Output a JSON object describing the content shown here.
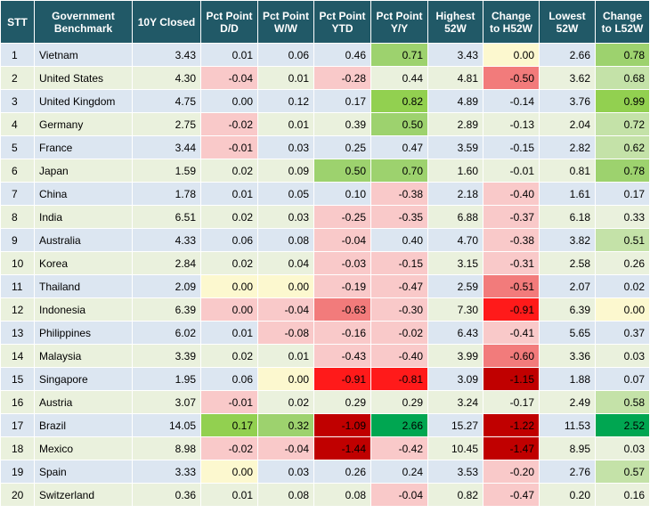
{
  "headers": [
    "STT",
    "Government Benchmark",
    "10Y Closed",
    "Pct Point D/D",
    "Pct Point W/W",
    "Pct Point YTD",
    "Pct Point Y/Y",
    "Highest 52W",
    "Change to H52W",
    "Lowest 52W",
    "Change to L52W"
  ],
  "rows": [
    {
      "stt": "1",
      "name": "Vietnam",
      "closed": "3.43",
      "dd": "0.01",
      "ww": "0.06",
      "ytd": "0.46",
      "yy": "0.71",
      "h52": "3.43",
      "ch": "0.00",
      "l52": "2.66",
      "cl": "0.78",
      "c": [
        "",
        "",
        "",
        "",
        "gm",
        "",
        "y",
        "",
        "gm"
      ]
    },
    {
      "stt": "2",
      "name": "United States",
      "closed": "4.30",
      "dd": "-0.04",
      "ww": "0.01",
      "ytd": "-0.28",
      "yy": "0.44",
      "h52": "4.81",
      "ch": "-0.50",
      "l52": "3.62",
      "cl": "0.68",
      "c": [
        "",
        "rl",
        "",
        "rl",
        "",
        "",
        "rm",
        "",
        "gl"
      ]
    },
    {
      "stt": "3",
      "name": "United Kingdom",
      "closed": "4.75",
      "dd": "0.00",
      "ww": "0.12",
      "ytd": "0.17",
      "yy": "0.82",
      "h52": "4.89",
      "ch": "-0.14",
      "l52": "3.76",
      "cl": "0.99",
      "c": [
        "",
        "",
        "",
        "",
        "gs",
        "",
        "",
        "",
        "gs"
      ]
    },
    {
      "stt": "4",
      "name": "Germany",
      "closed": "2.75",
      "dd": "-0.02",
      "ww": "0.01",
      "ytd": "0.39",
      "yy": "0.50",
      "h52": "2.89",
      "ch": "-0.13",
      "l52": "2.04",
      "cl": "0.72",
      "c": [
        "",
        "rl",
        "",
        "",
        "gm",
        "",
        "",
        "",
        "gl"
      ]
    },
    {
      "stt": "5",
      "name": "France",
      "closed": "3.44",
      "dd": "-0.01",
      "ww": "0.03",
      "ytd": "0.25",
      "yy": "0.47",
      "h52": "3.59",
      "ch": "-0.15",
      "l52": "2.82",
      "cl": "0.62",
      "c": [
        "",
        "rl",
        "",
        "",
        "",
        "",
        "",
        "",
        "gl"
      ]
    },
    {
      "stt": "6",
      "name": "Japan",
      "closed": "1.59",
      "dd": "0.02",
      "ww": "0.09",
      "ytd": "0.50",
      "yy": "0.70",
      "h52": "1.60",
      "ch": "-0.01",
      "l52": "0.81",
      "cl": "0.78",
      "c": [
        "",
        "",
        "",
        "gm",
        "gm",
        "",
        "",
        "",
        "gm"
      ]
    },
    {
      "stt": "7",
      "name": "China",
      "closed": "1.78",
      "dd": "0.01",
      "ww": "0.05",
      "ytd": "0.10",
      "yy": "-0.38",
      "h52": "2.18",
      "ch": "-0.40",
      "l52": "1.61",
      "cl": "0.17",
      "c": [
        "",
        "",
        "",
        "",
        "rl",
        "",
        "rl",
        "",
        ""
      ]
    },
    {
      "stt": "8",
      "name": "India",
      "closed": "6.51",
      "dd": "0.02",
      "ww": "0.03",
      "ytd": "-0.25",
      "yy": "-0.35",
      "h52": "6.88",
      "ch": "-0.37",
      "l52": "6.18",
      "cl": "0.33",
      "c": [
        "",
        "",
        "",
        "rl",
        "rl",
        "",
        "rl",
        "",
        ""
      ]
    },
    {
      "stt": "9",
      "name": "Australia",
      "closed": "4.33",
      "dd": "0.06",
      "ww": "0.08",
      "ytd": "-0.04",
      "yy": "0.40",
      "h52": "4.70",
      "ch": "-0.38",
      "l52": "3.82",
      "cl": "0.51",
      "c": [
        "",
        "",
        "",
        "rl",
        "",
        "",
        "rl",
        "",
        "gl"
      ]
    },
    {
      "stt": "10",
      "name": "Korea",
      "closed": "2.84",
      "dd": "0.02",
      "ww": "0.04",
      "ytd": "-0.03",
      "yy": "-0.15",
      "h52": "3.15",
      "ch": "-0.31",
      "l52": "2.58",
      "cl": "0.26",
      "c": [
        "",
        "",
        "",
        "rl",
        "rl",
        "",
        "rl",
        "",
        ""
      ]
    },
    {
      "stt": "11",
      "name": "Thailand",
      "closed": "2.09",
      "dd": "0.00",
      "ww": "0.00",
      "ytd": "-0.19",
      "yy": "-0.47",
      "h52": "2.59",
      "ch": "-0.51",
      "l52": "2.07",
      "cl": "0.02",
      "c": [
        "",
        "y",
        "y",
        "rl",
        "rl",
        "",
        "rm",
        "",
        ""
      ]
    },
    {
      "stt": "12",
      "name": "Indonesia",
      "closed": "6.39",
      "dd": "0.00",
      "ww": "-0.04",
      "ytd": "-0.63",
      "yy": "-0.30",
      "h52": "7.30",
      "ch": "-0.91",
      "l52": "6.39",
      "cl": "0.00",
      "c": [
        "",
        "rl",
        "rl",
        "rm",
        "rl",
        "",
        "rs",
        "",
        "y"
      ]
    },
    {
      "stt": "13",
      "name": "Philippines",
      "closed": "6.02",
      "dd": "0.01",
      "ww": "-0.08",
      "ytd": "-0.16",
      "yy": "-0.02",
      "h52": "6.43",
      "ch": "-0.41",
      "l52": "5.65",
      "cl": "0.37",
      "c": [
        "",
        "",
        "rl",
        "rl",
        "rl",
        "",
        "rl",
        "",
        ""
      ]
    },
    {
      "stt": "14",
      "name": "Malaysia",
      "closed": "3.39",
      "dd": "0.02",
      "ww": "0.01",
      "ytd": "-0.43",
      "yy": "-0.40",
      "h52": "3.99",
      "ch": "-0.60",
      "l52": "3.36",
      "cl": "0.03",
      "c": [
        "",
        "",
        "",
        "rl",
        "rl",
        "",
        "rm",
        "",
        ""
      ]
    },
    {
      "stt": "15",
      "name": "Singapore",
      "closed": "1.95",
      "dd": "0.06",
      "ww": "0.00",
      "ytd": "-0.91",
      "yy": "-0.81",
      "h52": "3.09",
      "ch": "-1.15",
      "l52": "1.88",
      "cl": "0.07",
      "c": [
        "",
        "",
        "y",
        "rs",
        "rs",
        "",
        "rx",
        "",
        ""
      ]
    },
    {
      "stt": "16",
      "name": "Austria",
      "closed": "3.07",
      "dd": "-0.01",
      "ww": "0.02",
      "ytd": "0.29",
      "yy": "0.29",
      "h52": "3.24",
      "ch": "-0.17",
      "l52": "2.49",
      "cl": "0.58",
      "c": [
        "",
        "rl",
        "",
        "",
        "",
        "",
        "",
        "",
        "gl"
      ]
    },
    {
      "stt": "17",
      "name": "Brazil",
      "closed": "14.05",
      "dd": "0.17",
      "ww": "0.32",
      "ytd": "-1.09",
      "yy": "2.66",
      "h52": "15.27",
      "ch": "-1.22",
      "l52": "11.53",
      "cl": "2.52",
      "c": [
        "",
        "gs",
        "gm",
        "rx",
        "gx",
        "",
        "rx",
        "",
        "gx"
      ]
    },
    {
      "stt": "18",
      "name": "Mexico",
      "closed": "8.98",
      "dd": "-0.02",
      "ww": "-0.04",
      "ytd": "-1.44",
      "yy": "-0.42",
      "h52": "10.45",
      "ch": "-1.47",
      "l52": "8.95",
      "cl": "0.03",
      "c": [
        "",
        "rl",
        "rl",
        "rx",
        "rl",
        "",
        "rx",
        "",
        ""
      ]
    },
    {
      "stt": "19",
      "name": "Spain",
      "closed": "3.33",
      "dd": "0.00",
      "ww": "0.03",
      "ytd": "0.26",
      "yy": "0.24",
      "h52": "3.53",
      "ch": "-0.20",
      "l52": "2.76",
      "cl": "0.57",
      "c": [
        "",
        "y",
        "",
        "",
        "",
        "",
        "rl",
        "",
        "gl"
      ]
    },
    {
      "stt": "20",
      "name": "Switzerland",
      "closed": "0.36",
      "dd": "0.01",
      "ww": "0.08",
      "ytd": "0.08",
      "yy": "-0.04",
      "h52": "0.82",
      "ch": "-0.47",
      "l52": "0.20",
      "cl": "0.16",
      "c": [
        "",
        "",
        "",
        "",
        "rl",
        "",
        "rl",
        "",
        ""
      ]
    }
  ]
}
